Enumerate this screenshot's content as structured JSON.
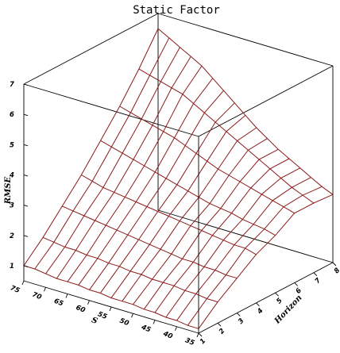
{
  "chart_data": {
    "type": "surface3d",
    "title": "Static Factor",
    "xlabel": "S",
    "ylabel": "Horizon",
    "zlabel": "RMSE",
    "s_values": [
      75,
      72.5,
      70,
      67.5,
      65,
      62.5,
      60,
      57.5,
      55,
      52.5,
      50,
      47.5,
      45,
      42.5,
      40,
      37.5,
      35
    ],
    "s_ticks": [
      75,
      70,
      65,
      60,
      55,
      50,
      45,
      40,
      35
    ],
    "horizon_values": [
      1,
      2,
      3,
      4,
      5,
      6,
      7,
      8
    ],
    "horizon_ticks": [
      1,
      2,
      3,
      4,
      5,
      6,
      7,
      8
    ],
    "z_ticks": [
      1,
      2,
      3,
      4,
      5,
      6,
      7
    ],
    "zlim": [
      0.5,
      7
    ],
    "rmse": [
      [
        1.0,
        1.0,
        0.95,
        0.9,
        0.9,
        0.9,
        0.85,
        0.85,
        0.8,
        0.8,
        0.8,
        0.75,
        0.75,
        0.7,
        0.7,
        0.65,
        0.65
      ],
      [
        1.6,
        1.55,
        1.5,
        1.5,
        1.45,
        1.45,
        1.4,
        1.4,
        1.35,
        1.35,
        1.3,
        1.3,
        1.3,
        1.25,
        1.25,
        1.2,
        1.2
      ],
      [
        2.3,
        2.25,
        2.2,
        2.15,
        2.1,
        2.05,
        2.0,
        1.95,
        1.9,
        1.85,
        1.8,
        1.75,
        1.75,
        1.7,
        1.7,
        1.65,
        1.65
      ],
      [
        3.0,
        2.9,
        2.8,
        2.75,
        2.7,
        2.65,
        2.6,
        2.55,
        2.5,
        2.45,
        2.4,
        2.35,
        2.3,
        2.25,
        2.2,
        2.2,
        2.1
      ],
      [
        3.8,
        3.7,
        3.6,
        3.5,
        3.4,
        3.3,
        3.2,
        3.1,
        3.0,
        2.9,
        2.8,
        2.75,
        2.7,
        2.6,
        2.55,
        2.5,
        2.4
      ],
      [
        4.6,
        4.5,
        4.4,
        4.3,
        4.2,
        4.1,
        3.95,
        3.8,
        3.65,
        3.5,
        3.4,
        3.3,
        3.2,
        3.1,
        3.0,
        2.9,
        2.8
      ],
      [
        5.5,
        5.4,
        5.3,
        5.2,
        5.1,
        4.9,
        4.7,
        4.5,
        4.3,
        4.1,
        3.9,
        3.7,
        3.5,
        3.3,
        3.1,
        2.95,
        2.8
      ],
      [
        6.5,
        6.3,
        6.1,
        5.9,
        5.7,
        5.4,
        5.1,
        4.8,
        4.5,
        4.2,
        3.95,
        3.7,
        3.5,
        3.3,
        3.1,
        2.9,
        2.75
      ]
    ],
    "grid": false,
    "mesh_color": "#8b1a1a",
    "box_color": "#000000"
  }
}
